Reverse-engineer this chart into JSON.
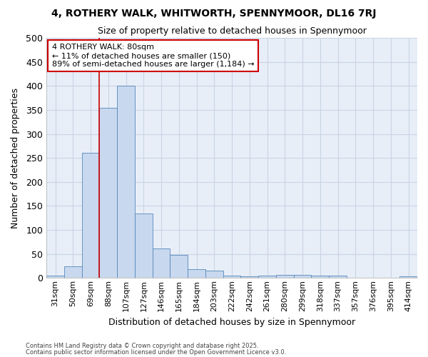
{
  "title1": "4, ROTHERY WALK, WHITWORTH, SPENNYMOOR, DL16 7RJ",
  "title2": "Size of property relative to detached houses in Spennymoor",
  "xlabel": "Distribution of detached houses by size in Spennymoor",
  "ylabel": "Number of detached properties",
  "categories": [
    "31sqm",
    "50sqm",
    "69sqm",
    "88sqm",
    "107sqm",
    "127sqm",
    "146sqm",
    "165sqm",
    "184sqm",
    "203sqm",
    "222sqm",
    "242sqm",
    "261sqm",
    "280sqm",
    "299sqm",
    "318sqm",
    "337sqm",
    "357sqm",
    "376sqm",
    "395sqm",
    "414sqm"
  ],
  "values": [
    5,
    25,
    260,
    355,
    400,
    135,
    62,
    48,
    18,
    15,
    5,
    3,
    5,
    6,
    6,
    5,
    5,
    1,
    0,
    0,
    3
  ],
  "bar_color": "#c8d8ee",
  "bar_edge_color": "#5588bb",
  "property_line_x": 2.5,
  "annotation_title": "4 ROTHERY WALK: 80sqm",
  "annotation_line1": "← 11% of detached houses are smaller (150)",
  "annotation_line2": "89% of semi-detached houses are larger (1,184) →",
  "annotation_box_color": "#ffffff",
  "annotation_box_edge": "#cc0000",
  "vline_color": "#cc0000",
  "background_color": "#ffffff",
  "plot_bg_color": "#e8eef8",
  "grid_color": "#c8d4e4",
  "ylim": [
    0,
    500
  ],
  "yticks": [
    0,
    50,
    100,
    150,
    200,
    250,
    300,
    350,
    400,
    450,
    500
  ],
  "footer1": "Contains HM Land Registry data © Crown copyright and database right 2025.",
  "footer2": "Contains public sector information licensed under the Open Government Licence v3.0."
}
